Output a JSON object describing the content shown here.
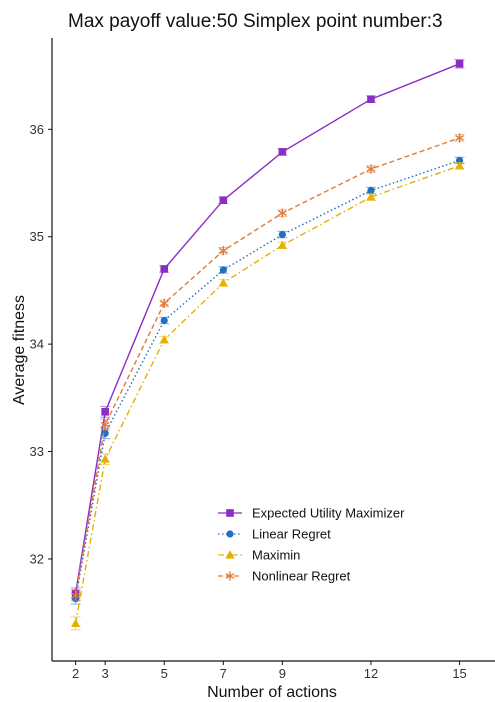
{
  "chart_data": {
    "type": "line",
    "title": "Max payoff value:50 Simplex point number:3",
    "xlabel": "Number of actions",
    "ylabel": "Average fitness",
    "x": [
      2,
      3,
      5,
      7,
      9,
      12,
      15
    ],
    "x_ticks": [
      "2",
      "3",
      "5",
      "7",
      "9",
      "12",
      "15"
    ],
    "y_ticks": [
      "32",
      "33",
      "34",
      "35",
      "36"
    ],
    "xlim": [
      1.2,
      16.2
    ],
    "ylim": [
      31.05,
      36.85
    ],
    "grid": false,
    "legend_position": "bottom-right",
    "series": [
      {
        "name": "Expected Utility Maximizer",
        "color": "#8a2ec6",
        "line_style": "solid",
        "marker": "square",
        "values": [
          31.68,
          33.37,
          34.7,
          35.34,
          35.79,
          36.28,
          36.61
        ],
        "errors": [
          0.05,
          0.05,
          0.03,
          0.03,
          0.03,
          0.03,
          0.04
        ]
      },
      {
        "name": "Linear Regret",
        "color": "#1f6fc2",
        "line_style": "dotted",
        "marker": "circle",
        "values": [
          31.63,
          33.17,
          34.22,
          34.69,
          35.02,
          35.43,
          35.71
        ],
        "errors": [
          0.05,
          0.05,
          0.03,
          0.03,
          0.03,
          0.03,
          0.03
        ]
      },
      {
        "name": "Maximin",
        "color": "#e6b000",
        "line_style": "dashdot",
        "marker": "triangle",
        "values": [
          31.4,
          32.93,
          34.04,
          34.57,
          34.92,
          35.37,
          35.66
        ],
        "errors": [
          0.06,
          0.05,
          0.03,
          0.03,
          0.03,
          0.03,
          0.03
        ]
      },
      {
        "name": "Nonlinear Regret",
        "color": "#e07b39",
        "line_style": "dashed",
        "marker": "asterisk",
        "values": [
          31.66,
          33.25,
          34.38,
          34.87,
          35.22,
          35.63,
          35.92
        ],
        "errors": [
          0.05,
          0.05,
          0.03,
          0.03,
          0.03,
          0.03,
          0.03
        ]
      }
    ]
  }
}
